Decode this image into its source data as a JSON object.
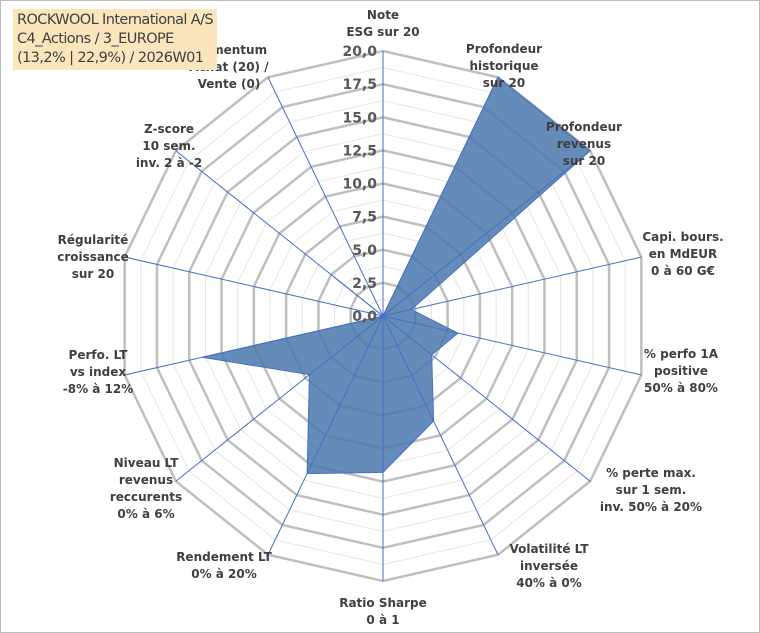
{
  "title": {
    "lines": [
      "ROCKWOOL International A/S",
      "C4_Actions / 3_EUROPE",
      "(13,2% | 22,9%) / 2026W01"
    ]
  },
  "chart_data": {
    "type": "radar",
    "rlim": [
      0,
      20
    ],
    "ticks": [
      "0,0",
      "2,5",
      "5,0",
      "7,5",
      "10,0",
      "12,5",
      "15,0",
      "17,5",
      "20,0"
    ],
    "tick_values": [
      0,
      2.5,
      5,
      7.5,
      10,
      12.5,
      15,
      17.5,
      20
    ],
    "grid": true,
    "categories": [
      [
        "Note",
        "ESG sur 20"
      ],
      [
        "Profondeur",
        "historique",
        "sur 20"
      ],
      [
        "Profondeur",
        "revenus",
        "sur 20"
      ],
      [
        "Capi. bours.",
        "en MdEUR",
        "0 à 60 G€"
      ],
      [
        "% perfo 1A",
        "positive",
        "50% à 80%"
      ],
      [
        "% perte max.",
        "sur 1 sem.",
        "inv. 50% à 20%"
      ],
      [
        "Volatilité LT",
        "inversée",
        "40% à 0%"
      ],
      [
        "Ratio Sharpe",
        "0 à 1"
      ],
      [
        "Rendement LT",
        "0% à 20%"
      ],
      [
        "Niveau LT",
        "revenus",
        "reccurents",
        "0% à 6%"
      ],
      [
        "Perfo. LT",
        "vs index",
        "-8% à 12%"
      ],
      [
        "Régularité",
        "croissance",
        "sur 20"
      ],
      [
        "Z-score",
        "10 sem.",
        "inv. 2 à -2"
      ],
      [
        "Momentum",
        "Achat (20) /",
        "Vente (0)"
      ]
    ],
    "values": [
      0,
      20,
      20,
      2.2,
      5.8,
      4.7,
      8.8,
      11.8,
      13.2,
      7.1,
      14,
      0,
      4.7,
      0
    ],
    "colors": {
      "fill": "#4a77ad",
      "axis": "#4472c4",
      "grid": "#bfbfbf",
      "minor_grid": "#e6e6e6"
    }
  }
}
